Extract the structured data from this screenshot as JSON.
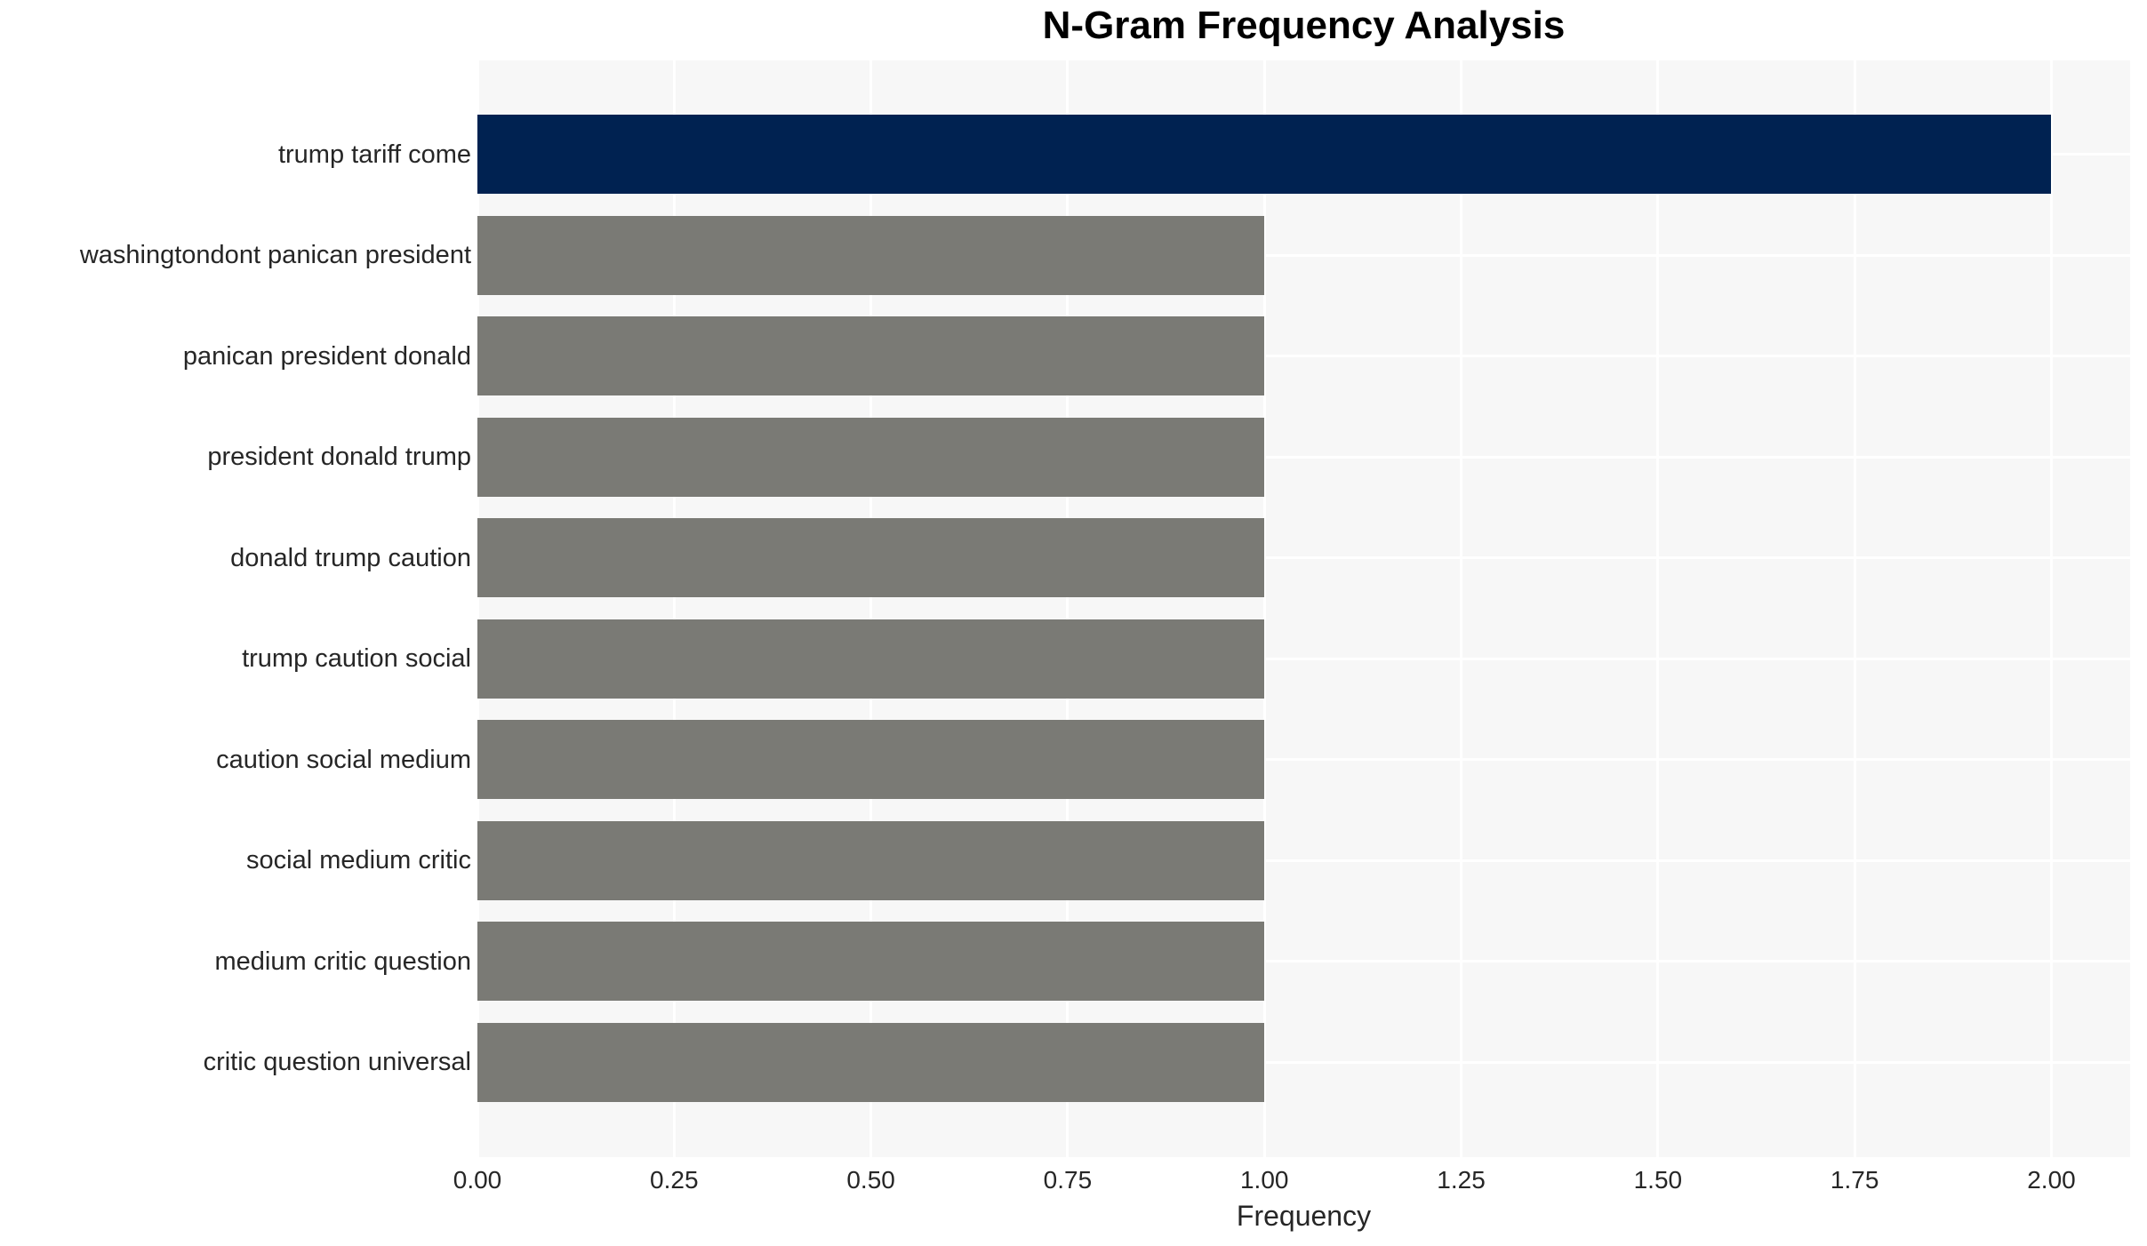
{
  "chart_data": {
    "type": "bar",
    "orientation": "horizontal",
    "title": "N-Gram Frequency Analysis",
    "xlabel": "Frequency",
    "ylabel": "",
    "categories": [
      "trump tariff come",
      "washingtondont panican president",
      "panican president donald",
      "president donald trump",
      "donald trump caution",
      "trump caution social",
      "caution social medium",
      "social medium critic",
      "medium critic question",
      "critic question universal"
    ],
    "values": [
      2,
      1,
      1,
      1,
      1,
      1,
      1,
      1,
      1,
      1
    ],
    "bar_colors": [
      "#002251",
      "#7a7a75",
      "#7a7a75",
      "#7a7a75",
      "#7a7a75",
      "#7a7a75",
      "#7a7a75",
      "#7a7a75",
      "#7a7a75",
      "#7a7a75"
    ],
    "xlim": [
      0,
      2.1
    ],
    "xticks": [
      0,
      0.25,
      0.5,
      0.75,
      1.0,
      1.25,
      1.5,
      1.75,
      2.0
    ],
    "xtick_labels": [
      "0.00",
      "0.25",
      "0.50",
      "0.75",
      "1.00",
      "1.25",
      "1.50",
      "1.75",
      "2.00"
    ],
    "grid": true,
    "legend_position": "none",
    "colors": {
      "highlight_bar": "#002251",
      "default_bar": "#7a7a75",
      "plot_background": "#f7f7f7",
      "gridline": "#ffffff",
      "tick_text": "#262626",
      "title_text": "#000000"
    }
  }
}
